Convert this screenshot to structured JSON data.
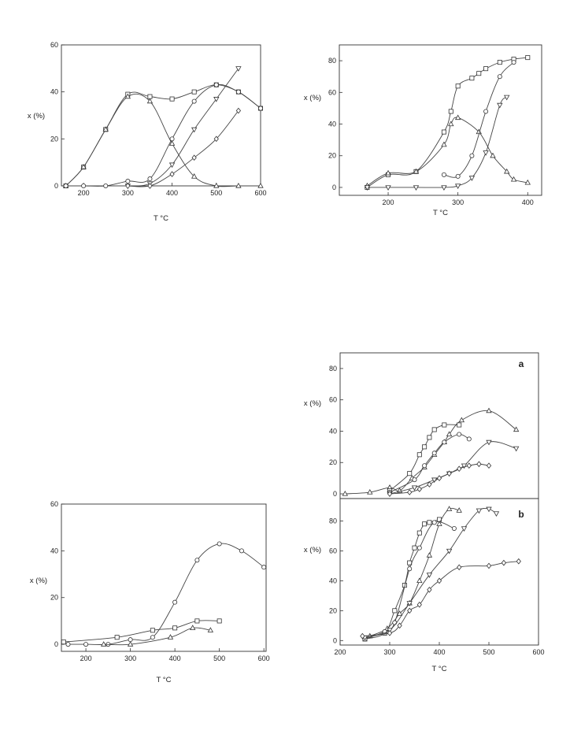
{
  "chart_data": [
    {
      "type": "line",
      "xlabel": "T °C",
      "ylabel": "x (%)",
      "xlim": [
        150,
        600
      ],
      "ylim": [
        0,
        60
      ],
      "xticks": [
        200,
        300,
        400,
        500,
        600
      ],
      "yticks": [
        0,
        20,
        40,
        60
      ],
      "series": [
        {
          "marker": "square",
          "points": [
            [
              160,
              0
            ],
            [
              200,
              8
            ],
            [
              250,
              24
            ],
            [
              300,
              39
            ],
            [
              350,
              38
            ],
            [
              400,
              37
            ],
            [
              450,
              40
            ],
            [
              500,
              43
            ],
            [
              550,
              40
            ],
            [
              600,
              33
            ]
          ]
        },
        {
          "marker": "triangle-up",
          "points": [
            [
              160,
              0
            ],
            [
              200,
              8
            ],
            [
              250,
              24
            ],
            [
              300,
              38
            ],
            [
              350,
              36
            ],
            [
              400,
              18
            ],
            [
              450,
              4
            ],
            [
              500,
              0
            ],
            [
              550,
              0
            ],
            [
              600,
              0
            ]
          ]
        },
        {
          "marker": "circle",
          "points": [
            [
              160,
              0
            ],
            [
              200,
              0
            ],
            [
              250,
              0
            ],
            [
              300,
              2
            ],
            [
              350,
              3
            ],
            [
              400,
              20
            ],
            [
              450,
              36
            ],
            [
              500,
              43
            ],
            [
              550,
              40
            ],
            [
              600,
              33
            ]
          ]
        },
        {
          "marker": "triangle-down",
          "points": [
            [
              300,
              0
            ],
            [
              350,
              1
            ],
            [
              400,
              9
            ],
            [
              450,
              24
            ],
            [
              500,
              37
            ],
            [
              550,
              50
            ]
          ]
        },
        {
          "marker": "diamond",
          "points": [
            [
              300,
              0
            ],
            [
              350,
              0
            ],
            [
              400,
              5
            ],
            [
              450,
              12
            ],
            [
              500,
              20
            ],
            [
              550,
              32
            ]
          ]
        }
      ]
    },
    {
      "type": "line",
      "xlabel": "T °C",
      "ylabel": "x (%)",
      "xlim": [
        130,
        420
      ],
      "ylim": [
        -5,
        90
      ],
      "xticks": [
        200,
        300,
        400
      ],
      "yticks": [
        0,
        20,
        40,
        60,
        80
      ],
      "series": [
        {
          "marker": "square",
          "points": [
            [
              170,
              0
            ],
            [
              200,
              8
            ],
            [
              240,
              10
            ],
            [
              280,
              35
            ],
            [
              290,
              48
            ],
            [
              300,
              64
            ],
            [
              320,
              69
            ],
            [
              330,
              72
            ],
            [
              340,
              75
            ],
            [
              360,
              79
            ],
            [
              380,
              81
            ],
            [
              400,
              82
            ]
          ]
        },
        {
          "marker": "triangle-up",
          "points": [
            [
              170,
              1
            ],
            [
              200,
              9
            ],
            [
              240,
              10
            ],
            [
              280,
              27
            ],
            [
              290,
              40
            ],
            [
              300,
              44
            ],
            [
              330,
              35
            ],
            [
              350,
              20
            ],
            [
              370,
              10
            ],
            [
              380,
              5
            ],
            [
              400,
              3
            ]
          ]
        },
        {
          "marker": "circle",
          "points": [
            [
              280,
              8
            ],
            [
              300,
              7
            ],
            [
              320,
              20
            ],
            [
              340,
              48
            ],
            [
              360,
              70
            ],
            [
              380,
              79
            ]
          ]
        },
        {
          "marker": "triangle-down",
          "points": [
            [
              170,
              0
            ],
            [
              200,
              0
            ],
            [
              240,
              0
            ],
            [
              280,
              0
            ],
            [
              300,
              1
            ],
            [
              320,
              6
            ],
            [
              340,
              22
            ],
            [
              360,
              52
            ],
            [
              370,
              57
            ]
          ]
        },
        {
          "marker": "diamond",
          "points": []
        }
      ]
    },
    {
      "type": "line",
      "xlabel": "T °C",
      "ylabel": "x (%)",
      "xlim": [
        145,
        605
      ],
      "ylim": [
        -3,
        60
      ],
      "xticks": [
        200,
        300,
        400,
        500,
        600
      ],
      "yticks": [
        0,
        20,
        40,
        60
      ],
      "series": [
        {
          "marker": "square",
          "points": [
            [
              150,
              1
            ],
            [
              270,
              3
            ],
            [
              350,
              6
            ],
            [
              400,
              7
            ],
            [
              450,
              10
            ],
            [
              500,
              10
            ]
          ]
        },
        {
          "marker": "circle",
          "points": [
            [
              160,
              0
            ],
            [
              200,
              0
            ],
            [
              250,
              0
            ],
            [
              300,
              2
            ],
            [
              350,
              3
            ],
            [
              400,
              18
            ],
            [
              450,
              36
            ],
            [
              500,
              43
            ],
            [
              550,
              40
            ],
            [
              600,
              33
            ]
          ]
        },
        {
          "marker": "triangle-up",
          "points": [
            [
              240,
              0
            ],
            [
              300,
              0
            ],
            [
              390,
              3
            ],
            [
              440,
              7
            ],
            [
              480,
              6
            ]
          ]
        },
        {
          "marker": "diamond",
          "points": []
        }
      ]
    },
    {
      "type": "line",
      "panel": "a",
      "xlabel": "",
      "ylabel": "x (%)",
      "xlim": [
        200,
        600
      ],
      "ylim": [
        -3,
        90
      ],
      "xticks": [],
      "yticks": [
        0,
        20,
        40,
        60,
        80
      ],
      "series": [
        {
          "marker": "triangle-up",
          "points": [
            [
              210,
              0
            ],
            [
              260,
              1
            ],
            [
              300,
              4
            ],
            [
              320,
              2
            ],
            [
              345,
              10
            ],
            [
              370,
              17
            ],
            [
              390,
              25
            ],
            [
              410,
              33
            ],
            [
              420,
              38
            ],
            [
              445,
              47
            ],
            [
              500,
              53
            ],
            [
              555,
              41
            ]
          ]
        },
        {
          "marker": "square",
          "points": [
            [
              300,
              2
            ],
            [
              340,
              13
            ],
            [
              360,
              25
            ],
            [
              370,
              30
            ],
            [
              380,
              36
            ],
            [
              390,
              41
            ],
            [
              410,
              44
            ],
            [
              440,
              44
            ]
          ]
        },
        {
          "marker": "circle",
          "points": [
            [
              300,
              1
            ],
            [
              350,
              9
            ],
            [
              370,
              18
            ],
            [
              390,
              26
            ],
            [
              410,
              33
            ],
            [
              440,
              38
            ],
            [
              460,
              35
            ]
          ]
        },
        {
          "marker": "triangle-down",
          "points": [
            [
              300,
              0
            ],
            [
              350,
              4
            ],
            [
              390,
              9
            ],
            [
              420,
              13
            ],
            [
              450,
              18
            ],
            [
              500,
              33
            ],
            [
              555,
              29
            ]
          ]
        },
        {
          "marker": "diamond",
          "points": [
            [
              300,
              0
            ],
            [
              340,
              1
            ],
            [
              360,
              3
            ],
            [
              380,
              6
            ],
            [
              400,
              10
            ],
            [
              420,
              13
            ],
            [
              440,
              16
            ],
            [
              460,
              18
            ],
            [
              480,
              19
            ],
            [
              500,
              18
            ]
          ]
        }
      ]
    },
    {
      "type": "line",
      "panel": "b",
      "xlabel": "T °C",
      "ylabel": "x (%)",
      "xlim": [
        200,
        600
      ],
      "ylim": [
        -3,
        95
      ],
      "xticks": [
        200,
        300,
        400,
        500,
        600
      ],
      "yticks": [
        0,
        20,
        40,
        60,
        80
      ],
      "series": [
        {
          "marker": "square",
          "points": [
            [
              250,
              1
            ],
            [
              290,
              5
            ],
            [
              310,
              20
            ],
            [
              330,
              37
            ],
            [
              340,
              52
            ],
            [
              350,
              62
            ],
            [
              360,
              72
            ],
            [
              370,
              78
            ],
            [
              380,
              79
            ],
            [
              400,
              81
            ]
          ]
        },
        {
          "marker": "triangle-up",
          "points": [
            [
              260,
              3
            ],
            [
              295,
              8
            ],
            [
              320,
              18
            ],
            [
              340,
              25
            ],
            [
              360,
              40
            ],
            [
              380,
              57
            ],
            [
              400,
              78
            ],
            [
              420,
              88
            ],
            [
              440,
              87
            ]
          ]
        },
        {
          "marker": "circle",
          "points": [
            [
              250,
              1
            ],
            [
              290,
              6
            ],
            [
              310,
              12
            ],
            [
              340,
              48
            ],
            [
              360,
              62
            ],
            [
              390,
              79
            ],
            [
              430,
              75
            ]
          ]
        },
        {
          "marker": "triangle-down",
          "points": [
            [
              250,
              2
            ],
            [
              300,
              7
            ],
            [
              340,
              25
            ],
            [
              380,
              44
            ],
            [
              420,
              60
            ],
            [
              450,
              75
            ],
            [
              480,
              87
            ],
            [
              500,
              88
            ],
            [
              515,
              85
            ]
          ]
        },
        {
          "marker": "diamond",
          "points": [
            [
              245,
              3
            ],
            [
              300,
              5
            ],
            [
              320,
              10
            ],
            [
              340,
              20
            ],
            [
              360,
              24
            ],
            [
              380,
              34
            ],
            [
              400,
              40
            ],
            [
              440,
              49
            ],
            [
              500,
              50
            ],
            [
              530,
              52
            ],
            [
              560,
              53
            ]
          ]
        }
      ]
    }
  ]
}
